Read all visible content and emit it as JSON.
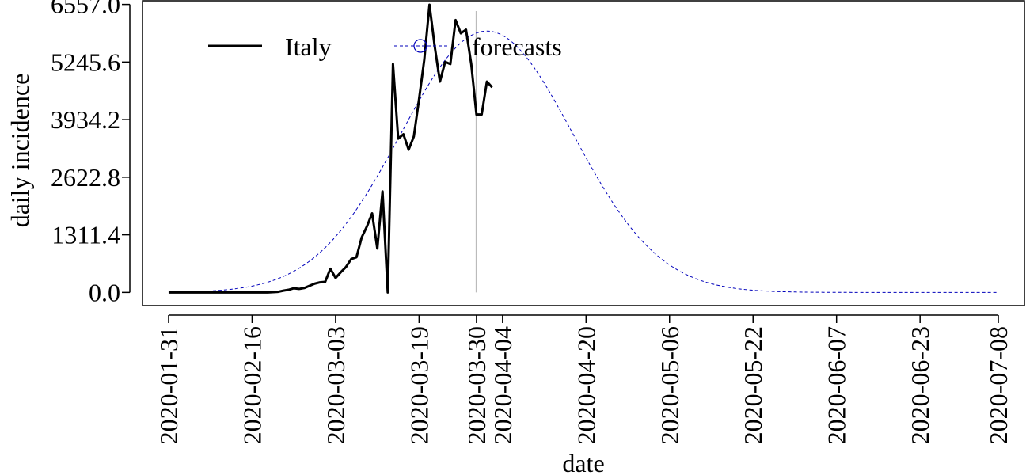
{
  "chart_data": {
    "type": "line",
    "xlabel": "date",
    "ylabel": "daily incidence",
    "y_ticks": [
      "0.0",
      "1311.4",
      "2622.8",
      "3934.2",
      "5245.6",
      "6557.0"
    ],
    "y_tick_values": [
      0,
      1311.4,
      2622.8,
      3934.2,
      5245.6,
      6557.0
    ],
    "ylim": [
      -300,
      6640
    ],
    "xlim": [
      "2020-01-26",
      "2020-07-13"
    ],
    "x_ticks": [
      "2020-01-31",
      "2020-02-16",
      "2020-03-03",
      "2020-03-19",
      "2020-03-30",
      "2020-04-04",
      "2020-04-20",
      "2020-05-06",
      "2020-05-22",
      "2020-06-07",
      "2020-06-23",
      "2020-07-08"
    ],
    "vertical_line": {
      "date": "2020-03-30",
      "color": "#bbbbbb"
    },
    "legend": {
      "position": "top-left"
    },
    "series": [
      {
        "name": "Italy",
        "style": "solid",
        "color": "#000000",
        "points": [
          [
            "2020-01-31",
            0
          ],
          [
            "2020-02-05",
            0
          ],
          [
            "2020-02-10",
            0
          ],
          [
            "2020-02-15",
            0
          ],
          [
            "2020-02-19",
            0
          ],
          [
            "2020-02-21",
            14
          ],
          [
            "2020-02-22",
            40
          ],
          [
            "2020-02-23",
            60
          ],
          [
            "2020-02-24",
            95
          ],
          [
            "2020-02-25",
            80
          ],
          [
            "2020-02-26",
            100
          ],
          [
            "2020-02-27",
            150
          ],
          [
            "2020-02-28",
            200
          ],
          [
            "2020-02-29",
            230
          ],
          [
            "2020-03-01",
            240
          ],
          [
            "2020-03-02",
            540
          ],
          [
            "2020-03-03",
            330
          ],
          [
            "2020-03-04",
            460
          ],
          [
            "2020-03-05",
            580
          ],
          [
            "2020-03-06",
            760
          ],
          [
            "2020-03-07",
            800
          ],
          [
            "2020-03-08",
            1250
          ],
          [
            "2020-03-09",
            1500
          ],
          [
            "2020-03-10",
            1800
          ],
          [
            "2020-03-11",
            1000
          ],
          [
            "2020-03-12",
            2300
          ],
          [
            "2020-03-13",
            0
          ],
          [
            "2020-03-14",
            5200
          ],
          [
            "2020-03-15",
            3500
          ],
          [
            "2020-03-16",
            3600
          ],
          [
            "2020-03-17",
            3250
          ],
          [
            "2020-03-18",
            3550
          ],
          [
            "2020-03-19",
            4400
          ],
          [
            "2020-03-20",
            5300
          ],
          [
            "2020-03-21",
            6550
          ],
          [
            "2020-03-22",
            5600
          ],
          [
            "2020-03-23",
            4800
          ],
          [
            "2020-03-24",
            5250
          ],
          [
            "2020-03-25",
            5200
          ],
          [
            "2020-03-26",
            6200
          ],
          [
            "2020-03-27",
            5900
          ],
          [
            "2020-03-28",
            5980
          ],
          [
            "2020-03-29",
            5200
          ],
          [
            "2020-03-30",
            4050
          ],
          [
            "2020-03-31",
            4050
          ],
          [
            "2020-04-01",
            4800
          ],
          [
            "2020-04-02",
            4670
          ]
        ]
      },
      {
        "name": "forecasts",
        "style": "dashed",
        "color": "#0000bb",
        "peak_date": "2020-04-01",
        "peak_value": 5950,
        "spread_days": 16.5,
        "start": "2020-01-31",
        "end": "2020-07-08"
      }
    ]
  }
}
